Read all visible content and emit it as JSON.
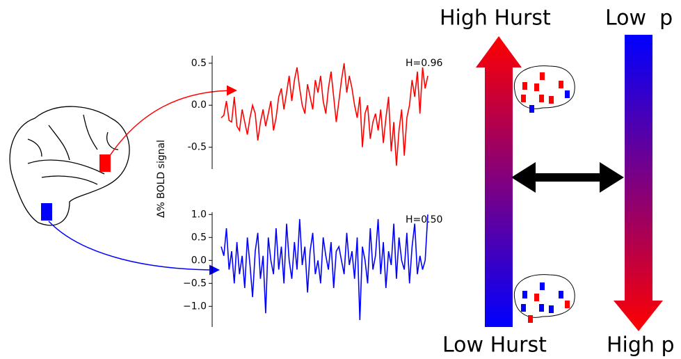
{
  "labels": {
    "left_top": "High Hurst",
    "right_top": "Low  p",
    "left_bottom": "Low Hurst",
    "right_bottom": "High p",
    "y_label": "Δ% BOLD signal"
  },
  "chart_data": [
    {
      "type": "line",
      "color": "#ff0000",
      "annotation": "H=0.96",
      "ylim": [
        -0.76,
        0.59
      ],
      "yticks": [
        0.5,
        {
          "value": 0,
          "label": "0.0"
        },
        -0.5
      ],
      "values": [
        -0.15,
        -0.12,
        0.05,
        -0.18,
        -0.2,
        0.1,
        -0.25,
        -0.3,
        -0.05,
        -0.2,
        -0.35,
        -0.15,
        0.0,
        -0.1,
        -0.42,
        -0.2,
        -0.05,
        -0.25,
        -0.1,
        0.05,
        -0.3,
        -0.15,
        0.1,
        0.2,
        -0.05,
        0.15,
        0.35,
        0.05,
        0.3,
        0.45,
        0.2,
        0.0,
        -0.1,
        0.25,
        0.1,
        -0.05,
        0.3,
        0.15,
        0.35,
        0.05,
        -0.1,
        0.2,
        0.4,
        0.1,
        -0.2,
        0.05,
        0.3,
        0.5,
        0.15,
        0.35,
        0.2,
        0.0,
        -0.15,
        0.1,
        -0.5,
        -0.1,
        0.0,
        -0.4,
        -0.2,
        -0.1,
        -0.3,
        -0.05,
        -0.45,
        -0.15,
        0.1,
        -0.55,
        -0.2,
        -0.72,
        -0.3,
        -0.05,
        -0.6,
        -0.15,
        0.0,
        0.3,
        0.1,
        0.4,
        -0.1,
        0.45,
        0.2,
        0.35
      ]
    },
    {
      "type": "line",
      "color": "#0000ff",
      "annotation": "H=0.50",
      "ylim": [
        -1.45,
        1.05
      ],
      "yticks": [
        {
          "value": 1,
          "label": "1.0"
        },
        0.5,
        {
          "value": 0,
          "label": "0.0"
        },
        {
          "value": -0.5,
          "label": "−0.5"
        },
        {
          "value": -1,
          "label": "−1.0"
        }
      ],
      "values": [
        0.3,
        0.1,
        0.7,
        -0.2,
        0.2,
        -0.5,
        0.4,
        -0.3,
        0.1,
        -0.6,
        0.5,
        -0.1,
        -0.8,
        0.2,
        0.6,
        -0.4,
        0.1,
        -1.15,
        0.5,
        0.0,
        -0.3,
        0.7,
        -0.2,
        0.3,
        -0.5,
        0.8,
        0.0,
        -0.4,
        0.4,
        -0.2,
        0.9,
        -0.1,
        0.3,
        -0.7,
        0.2,
        0.6,
        -0.3,
        0.0,
        -0.5,
        0.5,
        0.1,
        -0.2,
        0.4,
        -0.6,
        0.2,
        0.3,
        0.0,
        -0.3,
        0.6,
        -0.1,
        0.2,
        -0.4,
        0.5,
        -1.3,
        0.3,
        0.0,
        -0.5,
        0.7,
        -0.2,
        0.1,
        0.9,
        -0.3,
        0.4,
        -0.6,
        0.2,
        -0.1,
        0.8,
        -0.4,
        0.5,
        0.0,
        -0.2,
        0.6,
        -0.5,
        0.3,
        0.8,
        -0.3,
        0.1,
        -0.2,
        0.0,
        1.0
      ]
    }
  ]
}
